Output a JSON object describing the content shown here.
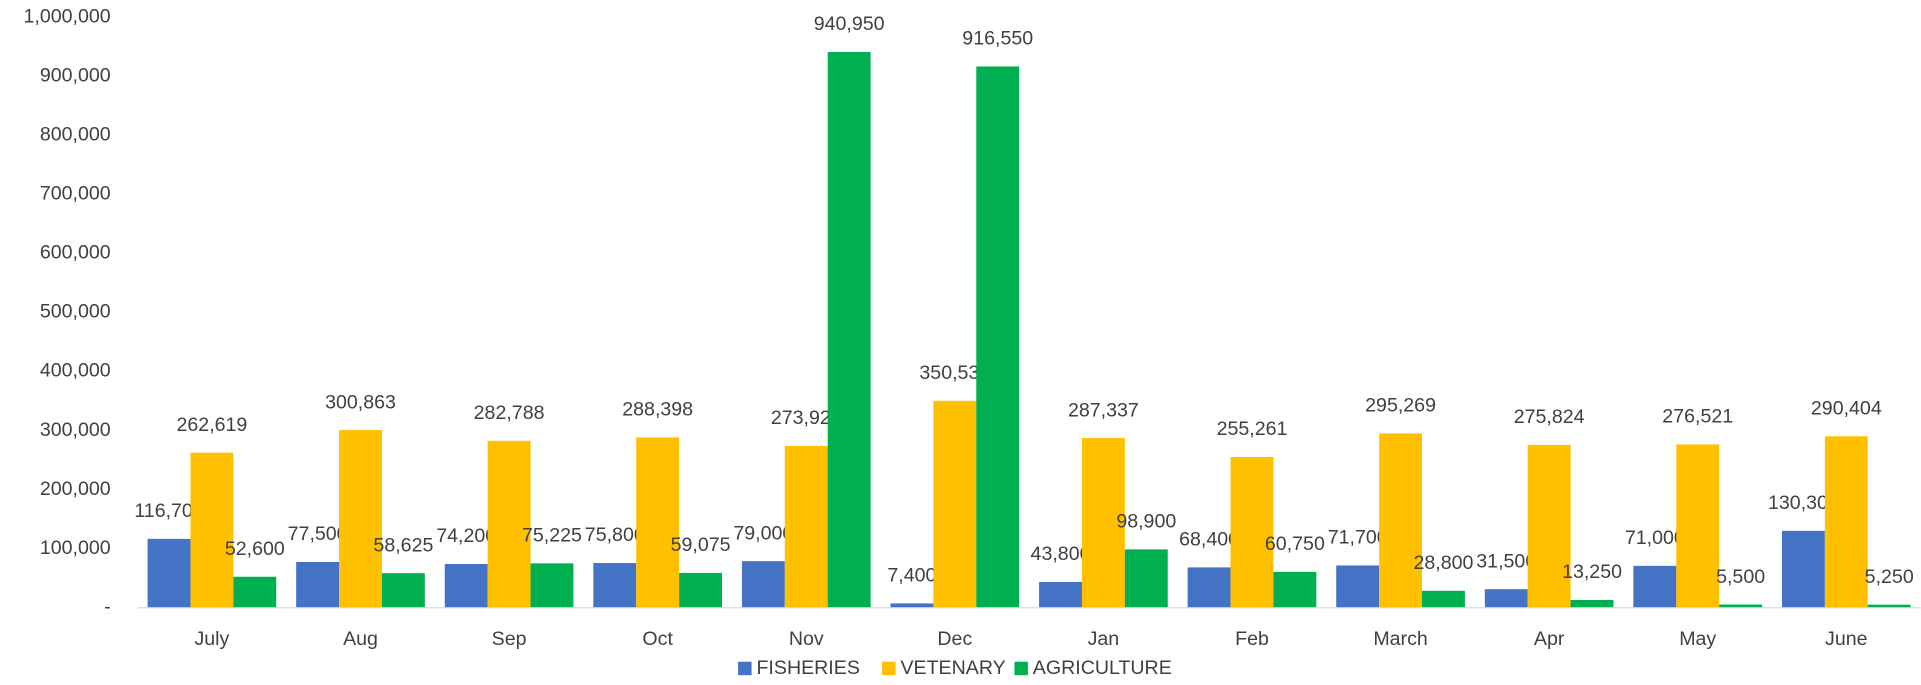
{
  "chart_data": {
    "type": "bar",
    "categories": [
      "July",
      "Aug",
      "Sep",
      "Oct",
      "Nov",
      "Dec",
      "Jan",
      "Feb",
      "March",
      "Apr",
      "May",
      "June"
    ],
    "series": [
      {
        "name": "FISHERIES",
        "color": "#4472c4",
        "values": [
          116700,
          77500,
          74200,
          75800,
          79000,
          7400,
          43800,
          68400,
          71700,
          31500,
          71000,
          130300
        ],
        "value_labels": [
          "116,700",
          "77,500",
          "74,200",
          "75,800",
          "79,000",
          "7,400",
          "43,800",
          "68,400",
          "71,700",
          "31,500",
          "71,000",
          "130,300"
        ]
      },
      {
        "name": "VETENARY",
        "color": "#ffc000",
        "values": [
          262619,
          300863,
          282788,
          288398,
          273925,
          350535,
          287337,
          255261,
          295269,
          275824,
          276521,
          290404
        ],
        "value_labels": [
          "262,619",
          "300,863",
          "282,788",
          "288,398",
          "273,925",
          "350,535",
          "287,337",
          "255,261",
          "295,269",
          "275,824",
          "276,521",
          "290,404"
        ]
      },
      {
        "name": "AGRICULTURE",
        "color": "#00b050",
        "values": [
          52600,
          58625,
          75225,
          59075,
          940950,
          916550,
          98900,
          60750,
          28800,
          13250,
          5500,
          5250
        ],
        "value_labels": [
          "52,600",
          "58,625",
          "75,225",
          "59,075",
          "940,950",
          "916,550",
          "98,900",
          "60,750",
          "28,800",
          "13,250",
          "5,500",
          "5,250"
        ]
      }
    ],
    "ylim": [
      0,
      1000000
    ],
    "yticks": [
      {
        "value": 0,
        "label": "-"
      },
      {
        "value": 100000,
        "label": "100,000"
      },
      {
        "value": 200000,
        "label": "200,000"
      },
      {
        "value": 300000,
        "label": "300,000"
      },
      {
        "value": 400000,
        "label": "400,000"
      },
      {
        "value": 500000,
        "label": "500,000"
      },
      {
        "value": 600000,
        "label": "600,000"
      },
      {
        "value": 700000,
        "label": "700,000"
      },
      {
        "value": 800000,
        "label": "800,000"
      },
      {
        "value": 900000,
        "label": "900,000"
      },
      {
        "value": 1000000,
        "label": "1,000,000"
      }
    ],
    "grid": false,
    "legend": "bottom"
  }
}
